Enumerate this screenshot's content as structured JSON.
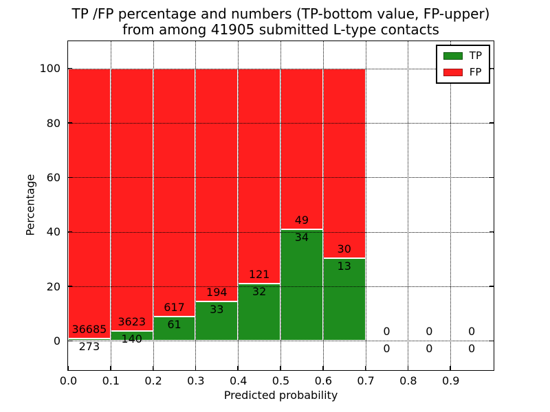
{
  "title_lines": [
    "TP /FP percentage and numbers (TP-bottom value, FP-upper)",
    "from among 41905 submitted L-type contacts"
  ],
  "chart_data": {
    "type": "bar",
    "stacked": true,
    "normalized_height_percent": 100,
    "title": "TP /FP percentage and numbers (TP-bottom value, FP-upper) from among 41905 submitted L-type contacts",
    "total_submitted": 41905,
    "xlabel": "Predicted probability",
    "ylabel": "Percentage",
    "xlim": [
      0.0,
      1.0
    ],
    "ylim": [
      -10.5,
      110
    ],
    "bin_width": 0.1,
    "bin_starts": [
      0.0,
      0.1,
      0.2,
      0.3,
      0.4,
      0.5,
      0.6,
      0.7,
      0.8,
      0.9
    ],
    "xtick_labels": [
      "0.0",
      "0.1",
      "0.2",
      "0.3",
      "0.4",
      "0.5",
      "0.6",
      "0.7",
      "0.8",
      "0.9"
    ],
    "ytick_values": [
      0,
      20,
      40,
      60,
      80,
      100
    ],
    "grid": true,
    "grid_style": "dotted",
    "legend_position": "upper right",
    "series": [
      {
        "name": "TP",
        "color": "#1e8c1e",
        "counts": [
          273,
          140,
          61,
          33,
          32,
          34,
          13,
          0,
          0,
          0
        ]
      },
      {
        "name": "FP",
        "color": "#ff1e1e",
        "counts": [
          36685,
          3623,
          617,
          194,
          121,
          49,
          30,
          0,
          0,
          0
        ]
      }
    ],
    "tp_percent_of_bin": [
      0.74,
      3.72,
      9.0,
      14.54,
      20.92,
      40.96,
      30.23,
      0,
      0,
      0
    ]
  }
}
